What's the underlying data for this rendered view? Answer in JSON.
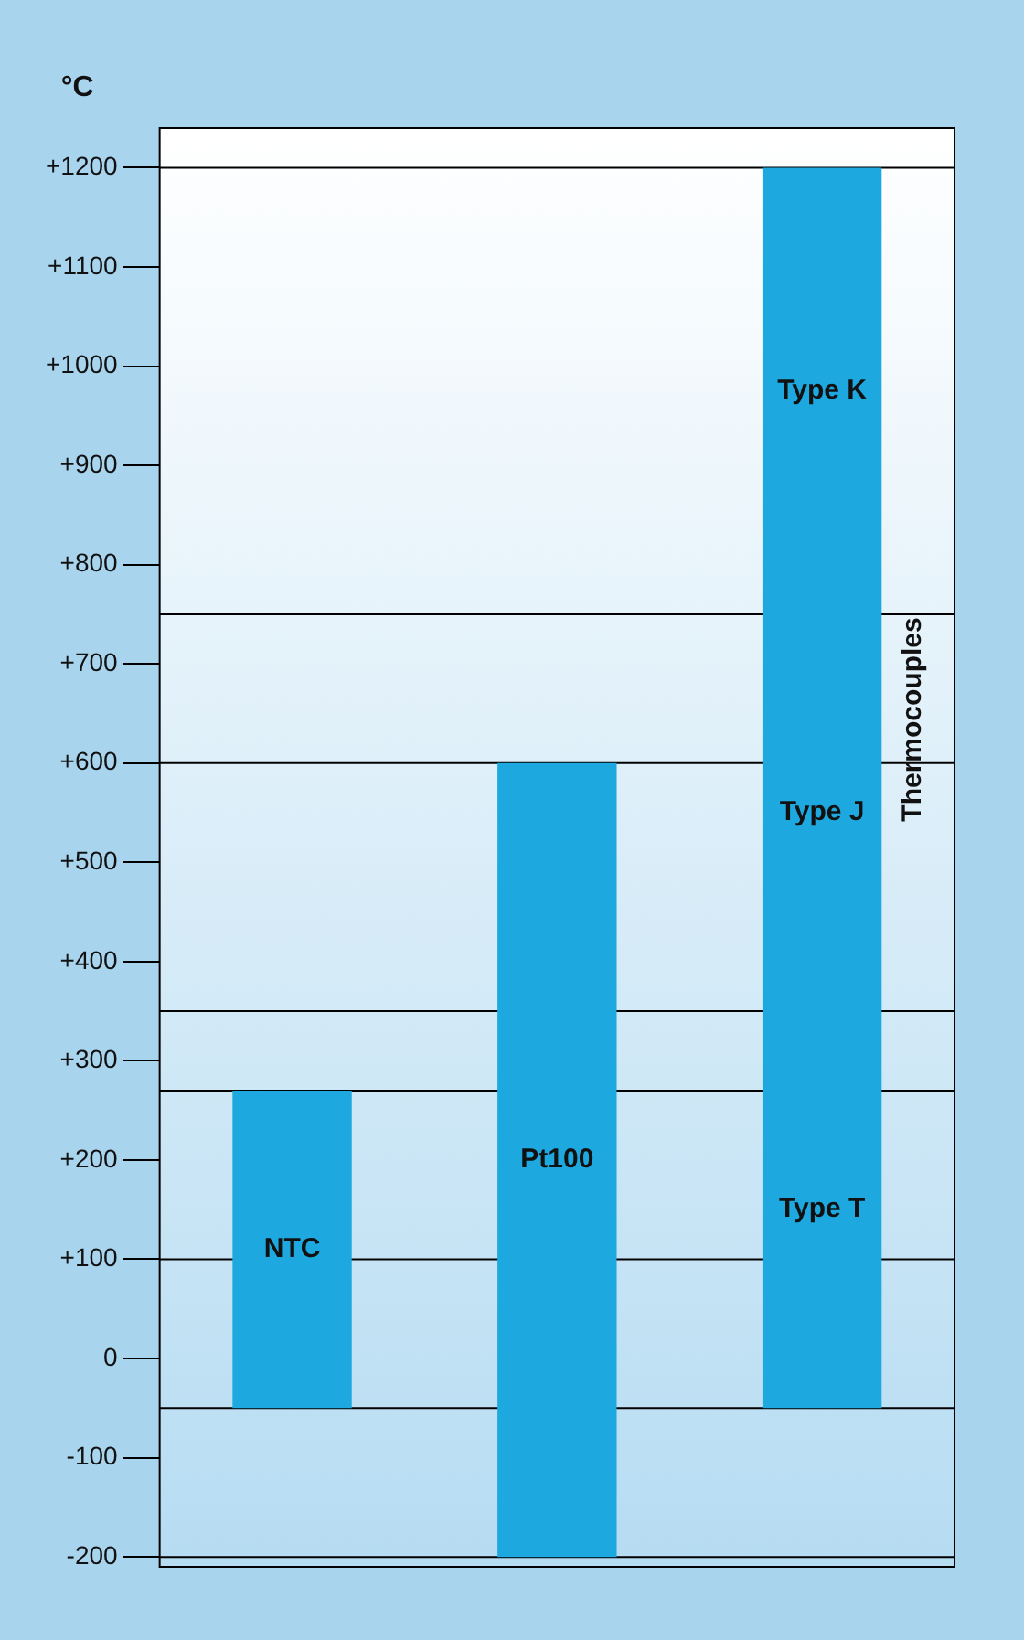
{
  "chart_data": {
    "type": "bar",
    "ylabel": "°C",
    "categories": [
      null,
      null,
      null
    ],
    "series": [
      {
        "name": "NTC",
        "color": "#1ea8e0",
        "values": [
          320,
          null,
          null
        ],
        "base": [
          -50,
          null,
          null
        ]
      },
      {
        "name": "Pt100",
        "color": "#1ea8e0",
        "values": [
          null,
          800,
          null
        ],
        "base": [
          null,
          -200,
          null
        ]
      },
      {
        "name": "Type T",
        "color": "#1ea8e0",
        "values": [
          null,
          null,
          400
        ],
        "base": [
          null,
          null,
          -50
        ]
      },
      {
        "name": "Type J",
        "color": "#1ea8e0",
        "values": [
          null,
          null,
          400
        ],
        "base": [
          null,
          null,
          350
        ]
      },
      {
        "name": "Type K",
        "color": "#1ea8e0",
        "values": [
          null,
          null,
          450
        ],
        "base": [
          null,
          null,
          750
        ]
      }
    ],
    "ylim": [
      -210,
      1240
    ],
    "yticks": [
      {
        "value": -200,
        "label": "-200"
      },
      {
        "value": -100,
        "label": "-100"
      },
      {
        "value": 0,
        "label": "0"
      },
      {
        "value": 100,
        "label": "+100"
      },
      {
        "value": 200,
        "label": "+200"
      },
      {
        "value": 300,
        "label": "+300"
      },
      {
        "value": 400,
        "label": "+400"
      },
      {
        "value": 500,
        "label": "+500"
      },
      {
        "value": 600,
        "label": "+600"
      },
      {
        "value": 700,
        "label": "+700"
      },
      {
        "value": 800,
        "label": "+800"
      },
      {
        "value": 900,
        "label": "+900"
      },
      {
        "value": 1000,
        "label": "+1000"
      },
      {
        "value": 1100,
        "label": "+1100"
      },
      {
        "value": 1200,
        "label": "+1200"
      }
    ],
    "ref_lines": [
      {
        "axis": "y",
        "value": 1200
      },
      {
        "axis": "y",
        "value": 750
      },
      {
        "axis": "y",
        "value": 600
      },
      {
        "axis": "y",
        "value": 350
      },
      {
        "axis": "y",
        "value": 270
      },
      {
        "axis": "y",
        "value": 100
      },
      {
        "axis": "y",
        "value": -50
      },
      {
        "axis": "y",
        "value": -200
      }
    ],
    "annotations": [
      "Thermocouples"
    ],
    "grid": false,
    "legend": false
  }
}
